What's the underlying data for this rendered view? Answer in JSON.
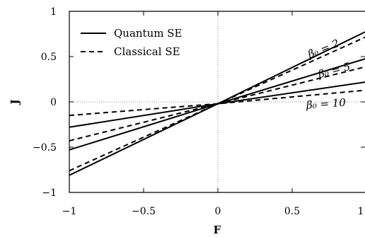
{
  "chart_data": {
    "type": "line",
    "xlabel": "F",
    "ylabel": "J",
    "xlim": [
      -1,
      1
    ],
    "ylim": [
      -1,
      1
    ],
    "xticks": [
      -1,
      -0.5,
      0,
      0.5,
      1
    ],
    "xtick_labels": [
      "−1",
      "−0.5",
      "0",
      "0.5",
      "1"
    ],
    "yticks": [
      -1,
      -0.5,
      0,
      0.5,
      1
    ],
    "ytick_labels": [
      "−1",
      "−0.5",
      "0",
      "0.5",
      "1"
    ],
    "grid": false,
    "reference_lines": [
      "x=0",
      "y=0"
    ],
    "legend": {
      "position": "top-left",
      "entries": [
        {
          "label": "Quantum SE",
          "style": "solid"
        },
        {
          "label": "Classical SE",
          "style": "dashed"
        }
      ]
    },
    "annotations": [
      {
        "text": "β₀ = 2",
        "x": 0.72,
        "y": 0.55,
        "rotation": -22
      },
      {
        "text": "β₀ = 5",
        "x": 0.79,
        "y": 0.31,
        "rotation": -15
      },
      {
        "text": "β₀ = 10",
        "x": 0.73,
        "y": -0.06,
        "rotation": -4
      }
    ],
    "series": [
      {
        "style": "solid",
        "beta": "2",
        "x": [
          -1,
          0,
          1
        ],
        "y": [
          -0.81,
          -0.02,
          0.78
        ]
      },
      {
        "style": "dashed",
        "beta": "2",
        "x": [
          -1,
          0,
          1
        ],
        "y": [
          -0.76,
          -0.02,
          0.72
        ]
      },
      {
        "style": "solid",
        "beta": "5",
        "x": [
          -1,
          0,
          1
        ],
        "y": [
          -0.53,
          -0.02,
          0.48
        ]
      },
      {
        "style": "dashed",
        "beta": "5",
        "x": [
          -1,
          0,
          1
        ],
        "y": [
          -0.43,
          -0.02,
          0.39
        ]
      },
      {
        "style": "solid",
        "beta": "10",
        "x": [
          -1,
          0,
          1
        ],
        "y": [
          -0.28,
          -0.02,
          0.22
        ]
      },
      {
        "style": "dashed",
        "beta": "10",
        "x": [
          -1,
          0,
          1
        ],
        "y": [
          -0.15,
          -0.02,
          0.13
        ]
      }
    ]
  }
}
